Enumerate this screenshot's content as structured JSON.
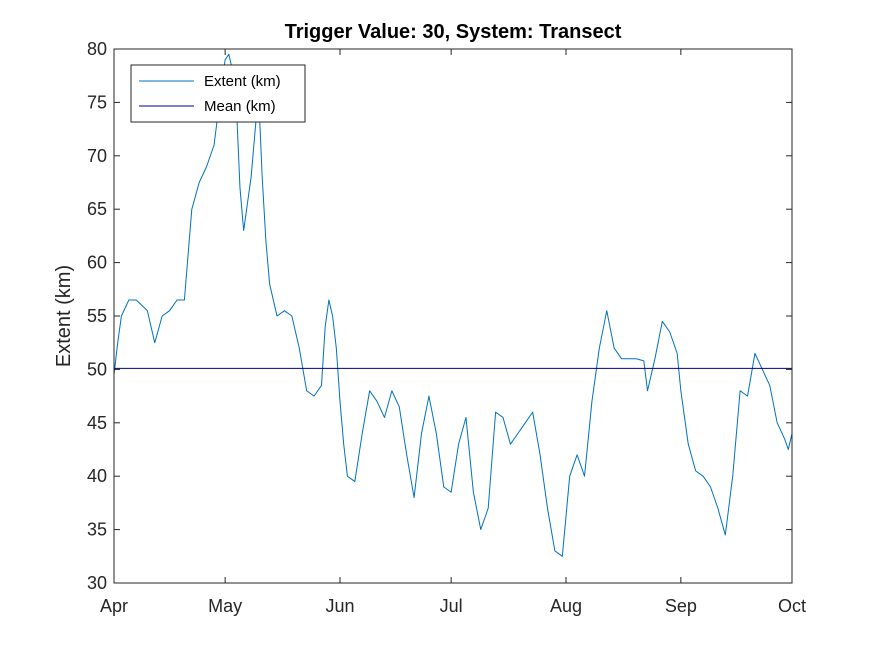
{
  "chart_data": {
    "type": "line",
    "title": "Trigger Value: 30, System: Transect",
    "xlabel": "",
    "ylabel": "Extent (km)",
    "x_axis_kind": "date",
    "xlim": [
      "04-01",
      "10-01"
    ],
    "x_ticks": [
      {
        "date": "04-01",
        "label": "Apr"
      },
      {
        "date": "05-01",
        "label": "May"
      },
      {
        "date": "06-01",
        "label": "Jun"
      },
      {
        "date": "07-01",
        "label": "Jul"
      },
      {
        "date": "08-01",
        "label": "Aug"
      },
      {
        "date": "09-01",
        "label": "Sep"
      },
      {
        "date": "10-01",
        "label": "Oct"
      }
    ],
    "ylim": [
      30,
      80
    ],
    "y_ticks": [
      30,
      35,
      40,
      45,
      50,
      55,
      60,
      65,
      70,
      75,
      80
    ],
    "grid": false,
    "legend_position": "top-left",
    "series": [
      {
        "name": "Extent (km)",
        "color": "#0072BD",
        "x": [
          "04-01",
          "04-02",
          "04-03",
          "04-05",
          "04-07",
          "04-10",
          "04-12",
          "04-14",
          "04-16",
          "04-18",
          "04-20",
          "04-22",
          "04-24",
          "04-26",
          "04-28",
          "04-30",
          "05-01",
          "05-02",
          "05-03",
          "05-04",
          "05-05",
          "05-06",
          "05-07",
          "05-08",
          "05-09",
          "05-10",
          "05-11",
          "05-12",
          "05-13",
          "05-15",
          "05-17",
          "05-19",
          "05-21",
          "05-23",
          "05-25",
          "05-27",
          "05-28",
          "05-29",
          "05-30",
          "05-31",
          "06-01",
          "06-02",
          "06-03",
          "06-05",
          "06-07",
          "06-09",
          "06-11",
          "06-13",
          "06-15",
          "06-17",
          "06-19",
          "06-21",
          "06-23",
          "06-25",
          "06-27",
          "06-29",
          "07-01",
          "07-03",
          "07-05",
          "07-07",
          "07-09",
          "07-11",
          "07-13",
          "07-15",
          "07-17",
          "07-19",
          "07-21",
          "07-23",
          "07-25",
          "07-27",
          "07-29",
          "07-31",
          "08-02",
          "08-04",
          "08-06",
          "08-08",
          "08-10",
          "08-12",
          "08-14",
          "08-16",
          "08-18",
          "08-20",
          "08-22",
          "08-23",
          "08-25",
          "08-27",
          "08-29",
          "08-31",
          "09-01",
          "09-03",
          "09-05",
          "09-07",
          "09-09",
          "09-11",
          "09-13",
          "09-15",
          "09-17",
          "09-19",
          "09-21",
          "09-23",
          "09-25",
          "09-27",
          "09-29",
          "09-30",
          "10-01"
        ],
        "y": [
          49.5,
          52.5,
          55.0,
          56.5,
          56.5,
          55.5,
          52.5,
          55.0,
          55.5,
          56.5,
          56.5,
          65.0,
          67.5,
          69.0,
          71.0,
          76.5,
          79.0,
          79.5,
          78.0,
          75.0,
          67.0,
          63.0,
          65.5,
          68.0,
          72.0,
          76.0,
          68.0,
          62.0,
          58.0,
          55.0,
          55.5,
          55.0,
          52.0,
          48.0,
          47.5,
          48.5,
          54.0,
          56.5,
          55.0,
          52.0,
          47.0,
          43.0,
          40.0,
          39.5,
          44.0,
          48.0,
          47.0,
          45.5,
          48.0,
          46.5,
          42.0,
          38.0,
          44.0,
          47.5,
          44.0,
          39.0,
          38.5,
          43.0,
          45.5,
          38.5,
          35.0,
          37.0,
          46.0,
          45.5,
          43.0,
          44.0,
          45.0,
          46.0,
          42.0,
          37.0,
          33.0,
          32.5,
          40.0,
          42.0,
          40.0,
          47.0,
          52.0,
          55.5,
          52.0,
          51.0,
          51.0,
          51.0,
          50.8,
          48.0,
          51.0,
          54.5,
          53.5,
          51.5,
          48.0,
          43.0,
          40.5,
          40.0,
          39.0,
          37.0,
          34.5,
          40.0,
          48.0,
          47.5,
          51.5,
          50.0,
          48.5,
          45.0,
          43.5,
          42.5,
          44.0
        ]
      },
      {
        "name": "Mean (km)",
        "color": "#00008B",
        "x": [
          "04-01",
          "10-01"
        ],
        "y": [
          50.1,
          50.1
        ]
      }
    ]
  }
}
